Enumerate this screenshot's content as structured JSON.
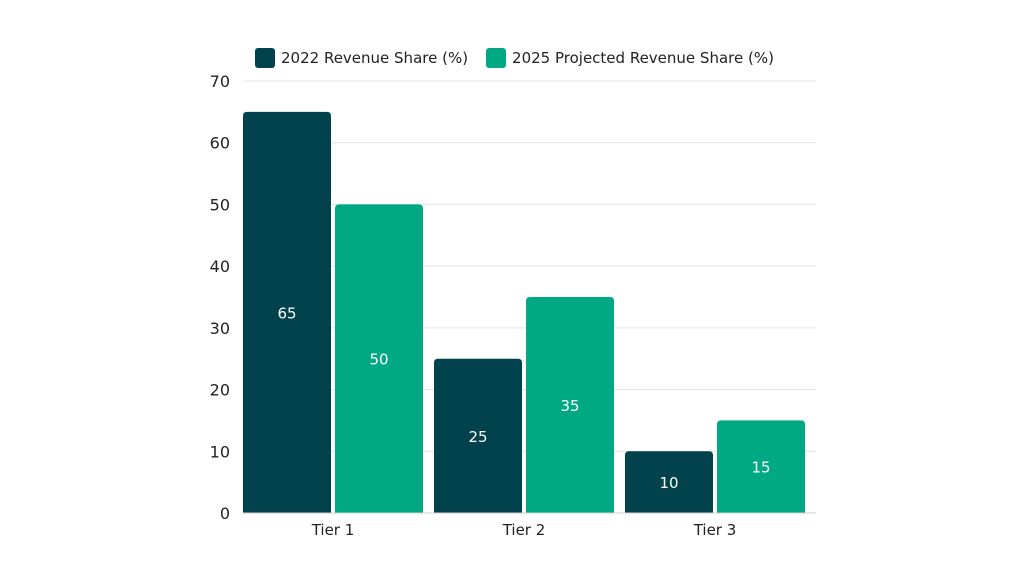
{
  "chart_data": {
    "type": "bar",
    "categories": [
      "Tier 1",
      "Tier 2",
      "Tier 3"
    ],
    "series": [
      {
        "name": "2022 Revenue Share (%)",
        "values": [
          65,
          25,
          10
        ],
        "color": "#02424d"
      },
      {
        "name": "2025 Projected Revenue Share (%)",
        "values": [
          50,
          35,
          15
        ],
        "color": "#00a884"
      }
    ],
    "ylim": [
      0,
      70
    ],
    "yticks": [
      0,
      10,
      20,
      30,
      40,
      50,
      60,
      70
    ],
    "grid": true,
    "legend_position": "top"
  }
}
